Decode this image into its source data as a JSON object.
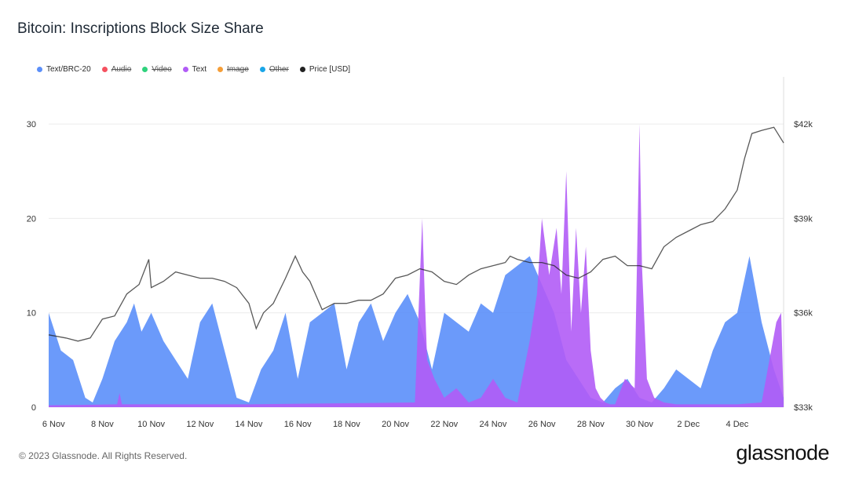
{
  "title": "Bitcoin: Inscriptions Block Size Share",
  "footer": "© 2023 Glassnode. All Rights Reserved.",
  "brand": "glassnode",
  "legend": [
    {
      "label": "Text/BRC-20",
      "color": "#5b8ff9",
      "enabled": true
    },
    {
      "label": "Audio",
      "color": "#f5515f",
      "enabled": false
    },
    {
      "label": "Video",
      "color": "#2fd27d",
      "enabled": false
    },
    {
      "label": "Text",
      "color": "#b15cf6",
      "enabled": true
    },
    {
      "label": "Image",
      "color": "#f59e38",
      "enabled": false
    },
    {
      "label": "Other",
      "color": "#1aa6e8",
      "enabled": false
    },
    {
      "label": "Price [USD]",
      "color": "#222222",
      "enabled": true
    }
  ],
  "chart_data": {
    "type": "area",
    "title": "Bitcoin: Inscriptions Block Size Share",
    "x_tick_labels": [
      "6 Nov",
      "8 Nov",
      "10 Nov",
      "12 Nov",
      "14 Nov",
      "16 Nov",
      "18 Nov",
      "20 Nov",
      "22 Nov",
      "24 Nov",
      "26 Nov",
      "28 Nov",
      "30 Nov",
      "2 Dec",
      "4 Dec"
    ],
    "xlim": [
      5.8,
      35.9
    ],
    "left_axis": {
      "ticks": [
        0,
        10,
        20,
        30
      ],
      "ylim": [
        0,
        35
      ]
    },
    "right_axis": {
      "ticks": [
        "$33k",
        "$36k",
        "$39k",
        "$42k"
      ],
      "tick_values": [
        33000,
        36000,
        39000,
        42000
      ],
      "ylim": [
        33000,
        43500
      ]
    },
    "grid": true,
    "legend_position": "top-left",
    "series": [
      {
        "name": "Text/BRC-20",
        "axis": "left",
        "color": "#5b8ff9",
        "x": [
          5.8,
          6.3,
          6.8,
          7.3,
          7.6,
          8.0,
          8.5,
          9.0,
          9.3,
          9.6,
          10.0,
          10.5,
          11.0,
          11.5,
          12.0,
          12.5,
          13.0,
          13.5,
          14.0,
          14.5,
          15.0,
          15.5,
          16.0,
          16.5,
          17.0,
          17.5,
          18.0,
          18.5,
          19.0,
          19.5,
          20.0,
          20.5,
          21.0,
          21.5,
          22.0,
          22.5,
          23.0,
          23.5,
          24.0,
          24.5,
          25.0,
          25.5,
          26.0,
          26.5,
          27.0,
          27.5,
          28.0,
          28.5,
          29.0,
          29.5,
          30.0,
          30.5,
          31.0,
          31.5,
          32.0,
          32.5,
          33.0,
          33.5,
          34.0,
          34.5,
          35.0,
          35.5,
          35.9
        ],
        "y": [
          10,
          6,
          5,
          1,
          0.5,
          3,
          7,
          9,
          11,
          8,
          10,
          7,
          5,
          3,
          9,
          11,
          6,
          1,
          0.5,
          4,
          6,
          10,
          3,
          9,
          10,
          11,
          4,
          9,
          11,
          7,
          10,
          12,
          9,
          4,
          10,
          9,
          8,
          11,
          10,
          14,
          15,
          16,
          13,
          10,
          5,
          3,
          1,
          0.5,
          2,
          3,
          1,
          0.5,
          2,
          4,
          3,
          2,
          6,
          9,
          10,
          16,
          9,
          4,
          1
        ]
      },
      {
        "name": "Text",
        "axis": "left",
        "color": "#b15cf6",
        "x": [
          5.8,
          8.6,
          8.7,
          8.8,
          10.0,
          14.0,
          20.8,
          21.1,
          21.2,
          21.3,
          21.6,
          22.0,
          22.5,
          23.0,
          23.5,
          24.0,
          24.5,
          25.0,
          25.5,
          25.8,
          26.0,
          26.3,
          26.6,
          26.8,
          27.0,
          27.2,
          27.4,
          27.6,
          27.8,
          28.0,
          28.2,
          28.4,
          28.6,
          28.8,
          29.0,
          29.4,
          29.8,
          30.0,
          30.1,
          30.3,
          30.6,
          31.0,
          31.5,
          32.0,
          33.0,
          34.0,
          35.0,
          35.6,
          35.8,
          35.9
        ],
        "y": [
          0.2,
          0.3,
          1.5,
          0.3,
          0.3,
          0.3,
          0.5,
          20,
          12,
          5,
          3,
          1,
          2,
          0.5,
          1,
          3,
          1,
          0.5,
          7,
          12,
          20,
          14,
          19,
          12,
          25,
          8,
          19,
          10,
          17,
          6,
          2,
          1,
          0.5,
          0.3,
          0.3,
          3,
          2,
          30,
          15,
          3,
          1,
          0.5,
          0.3,
          0.3,
          0.3,
          0.3,
          0.5,
          9,
          10,
          0.5
        ]
      },
      {
        "name": "Price [USD]",
        "axis": "right",
        "color": "#222222",
        "x": [
          5.8,
          6.5,
          7.0,
          7.5,
          8.0,
          8.5,
          9.0,
          9.5,
          9.9,
          10.0,
          10.5,
          11.0,
          11.5,
          12.0,
          12.5,
          13.0,
          13.5,
          14.0,
          14.3,
          14.6,
          15.0,
          15.5,
          15.9,
          16.2,
          16.5,
          17.0,
          17.5,
          18.0,
          18.5,
          19.0,
          19.5,
          20.0,
          20.5,
          21.0,
          21.5,
          22.0,
          22.5,
          23.0,
          23.5,
          24.0,
          24.5,
          24.7,
          25.0,
          25.5,
          26.0,
          26.5,
          27.0,
          27.5,
          28.0,
          28.5,
          29.0,
          29.5,
          30.0,
          30.5,
          31.0,
          31.5,
          32.0,
          32.5,
          33.0,
          33.5,
          34.0,
          34.3,
          34.6,
          35.0,
          35.5,
          35.9
        ],
        "y": [
          35.3,
          35.2,
          35.1,
          35.2,
          35.8,
          35.9,
          36.6,
          36.9,
          37.7,
          36.8,
          37.0,
          37.3,
          37.2,
          37.1,
          37.1,
          37.0,
          36.8,
          36.3,
          35.5,
          36.0,
          36.3,
          37.1,
          37.8,
          37.3,
          37.0,
          36.1,
          36.3,
          36.3,
          36.4,
          36.4,
          36.6,
          37.1,
          37.2,
          37.4,
          37.3,
          37.0,
          36.9,
          37.2,
          37.4,
          37.5,
          37.6,
          37.8,
          37.7,
          37.6,
          37.6,
          37.5,
          37.2,
          37.1,
          37.3,
          37.7,
          37.8,
          37.5,
          37.5,
          37.4,
          38.1,
          38.4,
          38.6,
          38.8,
          38.9,
          39.3,
          39.9,
          40.9,
          41.7,
          41.8,
          41.9,
          41.4
        ]
      }
    ]
  }
}
